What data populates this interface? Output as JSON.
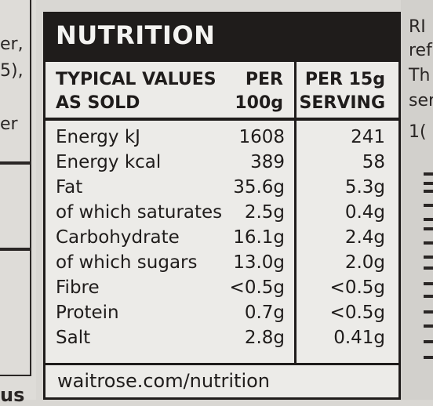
{
  "left_fragments": [
    "er,",
    "5),",
    "er"
  ],
  "left_bottom": "us",
  "right_fragments": [
    "RI =",
    "ref",
    "Th",
    "ser",
    "1("
  ],
  "panel": {
    "title": "NUTRITION",
    "col_label_line1": "TYPICAL VALUES",
    "col_label_line2": "AS SOLD",
    "col_per100_line1": "PER",
    "col_per100_line2": "100g",
    "col_serving_line1": "PER 15g",
    "col_serving_line2": "SERVING",
    "rows": [
      {
        "name": "Energy kJ",
        "per100": "1608",
        "serving": "241"
      },
      {
        "name": "Energy kcal",
        "per100": "389",
        "serving": "58"
      },
      {
        "name": "Fat",
        "per100": "35.6g",
        "serving": "5.3g"
      },
      {
        "name": "of which saturates",
        "per100": "2.5g",
        "serving": "0.4g"
      },
      {
        "name": "Carbohydrate",
        "per100": "16.1g",
        "serving": "2.4g"
      },
      {
        "name": "of which sugars",
        "per100": "13.0g",
        "serving": "2.0g"
      },
      {
        "name": "Fibre",
        "per100": "<0.5g",
        "serving": "<0.5g"
      },
      {
        "name": "Protein",
        "per100": "0.7g",
        "serving": "<0.5g"
      },
      {
        "name": "Salt",
        "per100": "2.8g",
        "serving": "0.41g"
      }
    ],
    "footer": "waitrose.com/nutrition"
  },
  "colors": {
    "ink": "#1f1c1b",
    "label_bg": "#ecebe8",
    "header_text": "#f4f3f1"
  }
}
